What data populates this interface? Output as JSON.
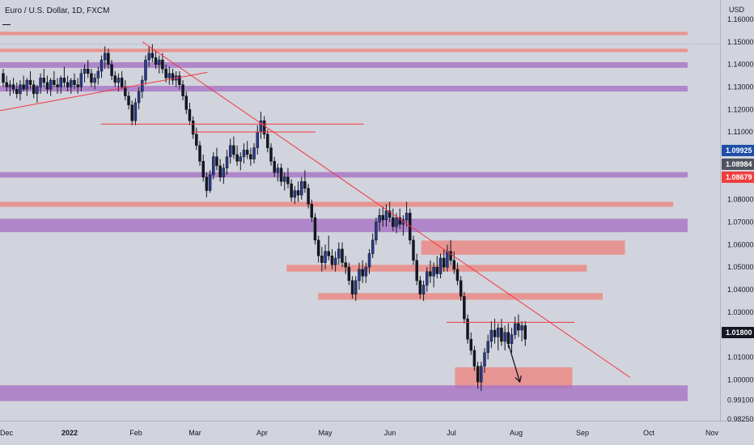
{
  "header": {
    "title": "Euro / U.S. Dollar, 1D, FXCM",
    "currency": "USD"
  },
  "chart_data": {
    "type": "candlestick",
    "title": "Euro / U.S. Dollar, 1D, FXCM",
    "symbol": "EURUSD",
    "ylabel": "USD",
    "ylim": [
      0.9825,
      1.1625
    ],
    "price_ticks": [
      1.16,
      1.15,
      1.14,
      1.13,
      1.12,
      1.11,
      1.08,
      1.07,
      1.06,
      1.05,
      1.04,
      1.03,
      1.01,
      1.0,
      0.991,
      0.9825
    ],
    "time_ticks": [
      "Dec",
      "2022",
      "Feb",
      "Mar",
      "Apr",
      "May",
      "Jun",
      "Jul",
      "Aug",
      "Sep",
      "Oct",
      "Nov"
    ],
    "price_badges": [
      {
        "value": "1.09925",
        "color": "#1e4ea8"
      },
      {
        "value": "1.08984",
        "color": "#50535e"
      },
      {
        "value": "1.08679",
        "color": "#ef3e3e"
      },
      {
        "value": "1.01800",
        "color": "#131722"
      }
    ],
    "candles_ohlc": [
      [
        1.136,
        1.138,
        1.13,
        1.132
      ],
      [
        1.132,
        1.135,
        1.128,
        1.13
      ],
      [
        1.13,
        1.133,
        1.126,
        1.131
      ],
      [
        1.131,
        1.134,
        1.127,
        1.129
      ],
      [
        1.129,
        1.132,
        1.125,
        1.127
      ],
      [
        1.127,
        1.133,
        1.124,
        1.131
      ],
      [
        1.131,
        1.135,
        1.128,
        1.129
      ],
      [
        1.129,
        1.134,
        1.126,
        1.133
      ],
      [
        1.133,
        1.137,
        1.129,
        1.131
      ],
      [
        1.131,
        1.133,
        1.125,
        1.127
      ],
      [
        1.127,
        1.131,
        1.123,
        1.13
      ],
      [
        1.13,
        1.136,
        1.127,
        1.134
      ],
      [
        1.134,
        1.138,
        1.13,
        1.132
      ],
      [
        1.132,
        1.135,
        1.127,
        1.129
      ],
      [
        1.129,
        1.134,
        1.126,
        1.133
      ],
      [
        1.133,
        1.137,
        1.13,
        1.131
      ],
      [
        1.131,
        1.134,
        1.127,
        1.13
      ],
      [
        1.13,
        1.135,
        1.127,
        1.134
      ],
      [
        1.134,
        1.139,
        1.13,
        1.132
      ],
      [
        1.132,
        1.135,
        1.128,
        1.13
      ],
      [
        1.13,
        1.134,
        1.127,
        1.133
      ],
      [
        1.133,
        1.136,
        1.129,
        1.131
      ],
      [
        1.131,
        1.134,
        1.127,
        1.13
      ],
      [
        1.13,
        1.138,
        1.128,
        1.136
      ],
      [
        1.136,
        1.14,
        1.132,
        1.138
      ],
      [
        1.138,
        1.142,
        1.134,
        1.136
      ],
      [
        1.136,
        1.138,
        1.13,
        1.132
      ],
      [
        1.132,
        1.136,
        1.129,
        1.134
      ],
      [
        1.134,
        1.139,
        1.131,
        1.137
      ],
      [
        1.137,
        1.144,
        1.134,
        1.142
      ],
      [
        1.142,
        1.148,
        1.138,
        1.145
      ],
      [
        1.145,
        1.147,
        1.138,
        1.14
      ],
      [
        1.14,
        1.142,
        1.133,
        1.135
      ],
      [
        1.135,
        1.137,
        1.13,
        1.132
      ],
      [
        1.132,
        1.136,
        1.128,
        1.134
      ],
      [
        1.134,
        1.137,
        1.129,
        1.13
      ],
      [
        1.13,
        1.133,
        1.124,
        1.126
      ],
      [
        1.126,
        1.128,
        1.12,
        1.122
      ],
      [
        1.122,
        1.124,
        1.113,
        1.115
      ],
      [
        1.115,
        1.125,
        1.113,
        1.123
      ],
      [
        1.123,
        1.13,
        1.12,
        1.128
      ],
      [
        1.128,
        1.135,
        1.125,
        1.133
      ],
      [
        1.133,
        1.144,
        1.131,
        1.142
      ],
      [
        1.142,
        1.148,
        1.139,
        1.145
      ],
      [
        1.145,
        1.149,
        1.141,
        1.143
      ],
      [
        1.143,
        1.146,
        1.138,
        1.14
      ],
      [
        1.14,
        1.144,
        1.136,
        1.142
      ],
      [
        1.142,
        1.145,
        1.136,
        1.138
      ],
      [
        1.138,
        1.14,
        1.132,
        1.134
      ],
      [
        1.134,
        1.139,
        1.131,
        1.136
      ],
      [
        1.136,
        1.138,
        1.131,
        1.133
      ],
      [
        1.133,
        1.137,
        1.13,
        1.135
      ],
      [
        1.135,
        1.137,
        1.129,
        1.131
      ],
      [
        1.131,
        1.133,
        1.124,
        1.126
      ],
      [
        1.126,
        1.128,
        1.118,
        1.12
      ],
      [
        1.12,
        1.123,
        1.113,
        1.115
      ],
      [
        1.115,
        1.117,
        1.107,
        1.109
      ],
      [
        1.109,
        1.112,
        1.102,
        1.104
      ],
      [
        1.104,
        1.106,
        1.095,
        1.097
      ],
      [
        1.097,
        1.1,
        1.088,
        1.09
      ],
      [
        1.09,
        1.092,
        1.081,
        1.084
      ],
      [
        1.084,
        1.093,
        1.083,
        1.091
      ],
      [
        1.091,
        1.101,
        1.089,
        1.099
      ],
      [
        1.099,
        1.103,
        1.093,
        1.095
      ],
      [
        1.095,
        1.098,
        1.088,
        1.09
      ],
      [
        1.09,
        1.096,
        1.087,
        1.094
      ],
      [
        1.094,
        1.102,
        1.091,
        1.099
      ],
      [
        1.099,
        1.107,
        1.096,
        1.104
      ],
      [
        1.104,
        1.108,
        1.098,
        1.1
      ],
      [
        1.1,
        1.104,
        1.095,
        1.097
      ],
      [
        1.097,
        1.101,
        1.093,
        1.099
      ],
      [
        1.099,
        1.105,
        1.096,
        1.102
      ],
      [
        1.102,
        1.106,
        1.098,
        1.1
      ],
      [
        1.1,
        1.103,
        1.095,
        1.098
      ],
      [
        1.098,
        1.105,
        1.096,
        1.103
      ],
      [
        1.103,
        1.113,
        1.1,
        1.11
      ],
      [
        1.11,
        1.119,
        1.107,
        1.115
      ],
      [
        1.115,
        1.117,
        1.107,
        1.109
      ],
      [
        1.109,
        1.111,
        1.101,
        1.103
      ],
      [
        1.103,
        1.105,
        1.095,
        1.097
      ],
      [
        1.097,
        1.099,
        1.09,
        1.092
      ],
      [
        1.092,
        1.096,
        1.088,
        1.094
      ],
      [
        1.094,
        1.096,
        1.086,
        1.088
      ],
      [
        1.088,
        1.092,
        1.084,
        1.09
      ],
      [
        1.09,
        1.094,
        1.085,
        1.087
      ],
      [
        1.087,
        1.089,
        1.079,
        1.081
      ],
      [
        1.081,
        1.086,
        1.078,
        1.084
      ],
      [
        1.084,
        1.088,
        1.079,
        1.082
      ],
      [
        1.082,
        1.09,
        1.08,
        1.088
      ],
      [
        1.088,
        1.093,
        1.083,
        1.085
      ],
      [
        1.085,
        1.087,
        1.076,
        1.078
      ],
      [
        1.078,
        1.08,
        1.07,
        1.072
      ],
      [
        1.072,
        1.074,
        1.06,
        1.062
      ],
      [
        1.062,
        1.064,
        1.052,
        1.055
      ],
      [
        1.055,
        1.059,
        1.048,
        1.052
      ],
      [
        1.052,
        1.06,
        1.049,
        1.057
      ],
      [
        1.057,
        1.064,
        1.053,
        1.055
      ],
      [
        1.055,
        1.058,
        1.049,
        1.051
      ],
      [
        1.051,
        1.057,
        1.048,
        1.054
      ],
      [
        1.054,
        1.061,
        1.051,
        1.058
      ],
      [
        1.058,
        1.061,
        1.05,
        1.052
      ],
      [
        1.052,
        1.055,
        1.047,
        1.05
      ],
      [
        1.05,
        1.052,
        1.042,
        1.044
      ],
      [
        1.044,
        1.046,
        1.036,
        1.038
      ],
      [
        1.038,
        1.046,
        1.035,
        1.044
      ],
      [
        1.044,
        1.052,
        1.04,
        1.049
      ],
      [
        1.049,
        1.053,
        1.043,
        1.046
      ],
      [
        1.046,
        1.052,
        1.043,
        1.05
      ],
      [
        1.05,
        1.058,
        1.047,
        1.056
      ],
      [
        1.056,
        1.065,
        1.054,
        1.062
      ],
      [
        1.062,
        1.072,
        1.06,
        1.07
      ],
      [
        1.07,
        1.076,
        1.066,
        1.073
      ],
      [
        1.073,
        1.077,
        1.068,
        1.071
      ],
      [
        1.071,
        1.078,
        1.068,
        1.075
      ],
      [
        1.075,
        1.079,
        1.07,
        1.072
      ],
      [
        1.072,
        1.076,
        1.066,
        1.068
      ],
      [
        1.068,
        1.074,
        1.065,
        1.072
      ],
      [
        1.072,
        1.076,
        1.067,
        1.069
      ],
      [
        1.069,
        1.073,
        1.064,
        1.071
      ],
      [
        1.071,
        1.079,
        1.068,
        1.074
      ],
      [
        1.074,
        1.076,
        1.06,
        1.062
      ],
      [
        1.062,
        1.064,
        1.051,
        1.053
      ],
      [
        1.053,
        1.056,
        1.042,
        1.044
      ],
      [
        1.044,
        1.046,
        1.036,
        1.038
      ],
      [
        1.038,
        1.044,
        1.035,
        1.042
      ],
      [
        1.042,
        1.05,
        1.039,
        1.048
      ],
      [
        1.048,
        1.053,
        1.043,
        1.046
      ],
      [
        1.046,
        1.052,
        1.041,
        1.05
      ],
      [
        1.05,
        1.055,
        1.045,
        1.047
      ],
      [
        1.047,
        1.056,
        1.045,
        1.054
      ],
      [
        1.054,
        1.058,
        1.048,
        1.05
      ],
      [
        1.05,
        1.06,
        1.048,
        1.057
      ],
      [
        1.057,
        1.062,
        1.051,
        1.053
      ],
      [
        1.053,
        1.057,
        1.047,
        1.049
      ],
      [
        1.049,
        1.052,
        1.042,
        1.044
      ],
      [
        1.044,
        1.046,
        1.035,
        1.037
      ],
      [
        1.037,
        1.039,
        1.025,
        1.027
      ],
      [
        1.027,
        1.029,
        1.016,
        1.018
      ],
      [
        1.018,
        1.021,
        1.011,
        1.013
      ],
      [
        1.013,
        1.015,
        1.004,
        1.006
      ],
      [
        1.006,
        1.008,
        0.996,
        0.999
      ],
      [
        0.999,
        1.008,
        0.995,
        1.006
      ],
      [
        1.006,
        1.014,
        1.003,
        1.012
      ],
      [
        1.012,
        1.02,
        1.009,
        1.017
      ],
      [
        1.017,
        1.026,
        1.014,
        1.022
      ],
      [
        1.022,
        1.027,
        1.016,
        1.019
      ],
      [
        1.019,
        1.025,
        1.013,
        1.023
      ],
      [
        1.023,
        1.027,
        1.015,
        1.017
      ],
      [
        1.017,
        1.024,
        1.013,
        1.021
      ],
      [
        1.021,
        1.025,
        1.014,
        1.016
      ],
      [
        1.016,
        1.023,
        1.012,
        1.02
      ],
      [
        1.02,
        1.028,
        1.018,
        1.025
      ],
      [
        1.025,
        1.029,
        1.019,
        1.022
      ],
      [
        1.022,
        1.026,
        1.017,
        1.024
      ],
      [
        1.024,
        1.026,
        1.015,
        1.018
      ]
    ],
    "horizontal_levels": [
      {
        "y1": 1.1545,
        "y2": 1.153,
        "from": 0.0,
        "to": 0.955,
        "color": "#eb8a85",
        "kind": "zone"
      },
      {
        "y1": 1.147,
        "y2": 1.1455,
        "from": 0.0,
        "to": 0.955,
        "color": "#eb8a85",
        "kind": "zone"
      },
      {
        "y1": 1.141,
        "y2": 1.1385,
        "from": 0.0,
        "to": 0.955,
        "color": "#a978c5",
        "kind": "zone"
      },
      {
        "y1": 1.1305,
        "y2": 1.128,
        "from": 0.0,
        "to": 0.955,
        "color": "#a978c5",
        "kind": "zone"
      },
      {
        "y1": 1.0922,
        "y2": 1.0898,
        "from": 0.0,
        "to": 0.955,
        "color": "#a978c5",
        "kind": "zone"
      },
      {
        "y1": 1.079,
        "y2": 1.0768,
        "from": 0.0,
        "to": 0.935,
        "color": "#eb8a85",
        "kind": "zone"
      },
      {
        "y1": 1.0715,
        "y2": 1.0655,
        "from": 0.0,
        "to": 0.955,
        "color": "#a978c5",
        "kind": "zone"
      },
      {
        "y1": 1.0618,
        "y2": 1.0555,
        "from": 0.585,
        "to": 0.868,
        "color": "#eb8a85",
        "kind": "zone"
      },
      {
        "y1": 1.051,
        "y2": 1.048,
        "from": 0.398,
        "to": 0.815,
        "color": "#eb8a85",
        "kind": "zone"
      },
      {
        "y1": 1.0385,
        "y2": 1.0355,
        "from": 0.442,
        "to": 0.837,
        "color": "#eb8a85",
        "kind": "zone"
      },
      {
        "y1": 1.0055,
        "y2": 0.996,
        "from": 0.632,
        "to": 0.795,
        "color": "#eb8a85",
        "kind": "zone"
      },
      {
        "y1": 0.9975,
        "y2": 0.9905,
        "from": 0.0,
        "to": 0.955,
        "color": "#a978c5",
        "kind": "zone"
      }
    ],
    "trendlines": [
      {
        "x1": 0.0,
        "y1": 1.1195,
        "x2": 0.288,
        "y2": 1.1365
      },
      {
        "x1": 0.198,
        "y1": 1.15,
        "x2": 0.875,
        "y2": 1.001
      }
    ],
    "level_lines": [
      {
        "y": 1.1135,
        "x1": 0.14,
        "x2": 0.505
      },
      {
        "y": 1.11,
        "x1": 0.268,
        "x2": 0.438
      },
      {
        "y": 1.0255,
        "x1": 0.62,
        "x2": 0.798
      }
    ],
    "arrow": {
      "x1": 0.705,
      "y1": 1.017,
      "x2": 0.722,
      "y2": 0.999
    },
    "grid": false
  }
}
